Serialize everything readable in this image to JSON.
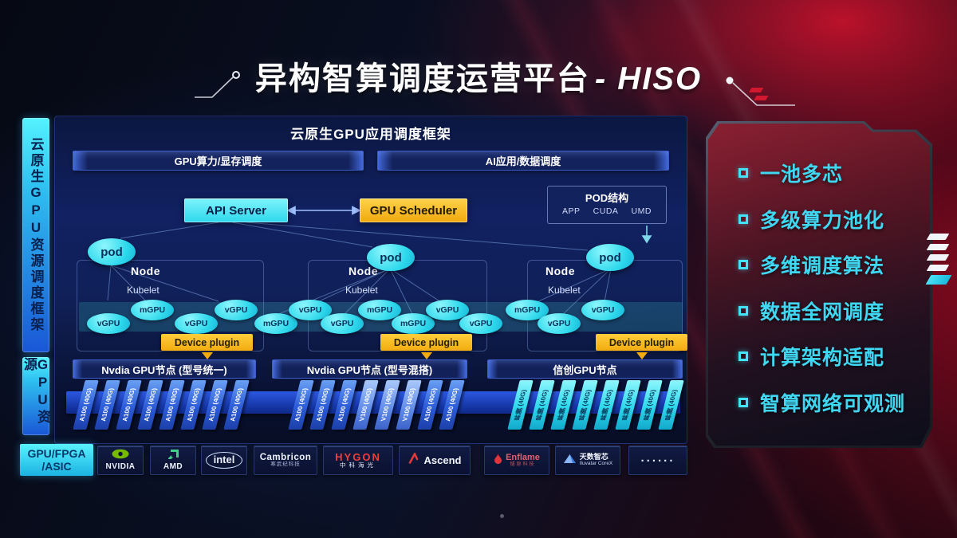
{
  "header": {
    "title_main": "异构智算调度运营平台",
    "title_suffix": "- HISO"
  },
  "left_rail": {
    "top_label": "云原生GPU资源调度框架",
    "bottom_label": "GPU资源"
  },
  "framework": {
    "header": "云原生GPU应用调度框架",
    "lanes": [
      "GPU算力/显存调度",
      "AI应用/数据调度"
    ],
    "api_server_label": "API Server",
    "gpu_scheduler_label": "GPU Scheduler",
    "pod_box": {
      "title": "POD结构",
      "items": [
        "APP",
        "CUDA",
        "UMD"
      ]
    },
    "pod_label": "pod",
    "node_label": "Node",
    "kubelet_label": "Kubelet",
    "device_plugin_label": "Device plugin",
    "gpu_instances": [
      "vGPU",
      "mGPU",
      "vGPU",
      "vGPU",
      "mGPU",
      "vGPU",
      "vGPU",
      "mGPU",
      "mGPU",
      "vGPU",
      "vGPU",
      "mGPU",
      "vGPU",
      "vGPU"
    ],
    "node_groups": [
      {
        "title": "Nvdia GPU节点 (型号统一)",
        "theme": "blue",
        "cards": [
          "A100 (40G)",
          "A100 (40G)",
          "A100 (40G)",
          "A100 (40G)",
          "A100 (40G)",
          "A100 (40G)",
          "A100 (40G)",
          "A100 (40G)"
        ]
      },
      {
        "title": "Nvdia GPU节点 (型号混搭)",
        "theme": "blue",
        "cards": [
          "A100 (40G)",
          "A100 (40G)",
          "A100 (40G)",
          "V100 (40G)",
          "V100 (40G)",
          "V100 (40G)",
          "A100 (40G)",
          "A100 (40G)"
        ]
      },
      {
        "title": "信创GPU节点",
        "theme": "cyan",
        "cards": [
          "昇腾 (40G)",
          "昇腾 (40G)",
          "昇腾 (40G)",
          "昇腾 (40G)",
          "昇腾 (40G)",
          "昇腾 (40G)",
          "昇腾 (40G)",
          "昇腾 (40G)"
        ]
      }
    ]
  },
  "hardware_bar": {
    "label_line1": "GPU/FPGA",
    "label_line2": "/ASIC",
    "vendors": [
      {
        "name": "NVIDIA",
        "icon": "nvidia-logo"
      },
      {
        "name": "AMD",
        "icon": "amd-logo"
      },
      {
        "name": "intel",
        "icon": "intel-logo"
      },
      {
        "name": "Cambricon",
        "sub": "寒武纪科技",
        "icon": "cambricon-logo"
      },
      {
        "name": "HYGON",
        "sub": "中科海光",
        "icon": "hygon-logo"
      },
      {
        "name": "Ascend",
        "icon": "ascend-logo"
      },
      {
        "name": "Enflame",
        "sub": "燧原科技",
        "icon": "enflame-logo"
      },
      {
        "name": "天数智芯",
        "sub": "Iluvatar CoreX",
        "icon": "iluvatar-logo"
      },
      {
        "name": "......",
        "icon": "more-dots"
      }
    ]
  },
  "features": {
    "items": [
      "一池多芯",
      "多级算力池化",
      "多维调度算法",
      "数据全网调度",
      "计算架构适配",
      "智算网络可观测"
    ]
  },
  "colors": {
    "cyan": "#38e2f2",
    "yellow": "#f7b616",
    "card_blue": "#2d62d8",
    "card_light_blue": "#6ea2f0",
    "xc_cyan": "#2ed8ec",
    "accent_red": "#c41230",
    "panel_navy": "#102058"
  }
}
